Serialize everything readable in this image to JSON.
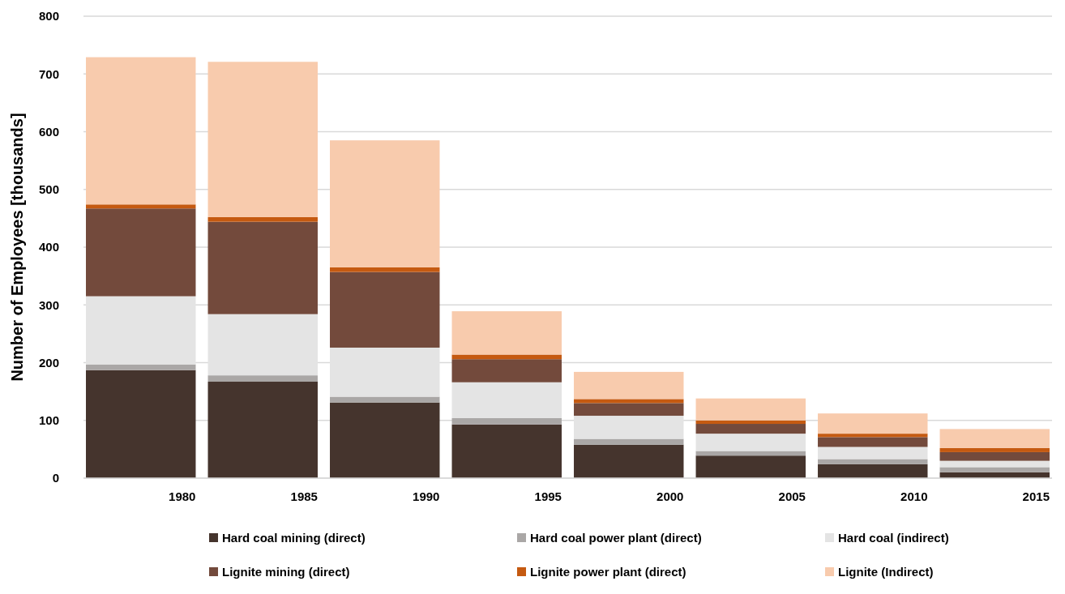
{
  "chart_data": {
    "type": "bar",
    "stacked": true,
    "ylabel": "Number of Employees [thousands]",
    "categories": [
      "1980",
      "1985",
      "1990",
      "1995",
      "2000",
      "2005",
      "2010",
      "2015"
    ],
    "series": [
      {
        "name": "Hard coal mining (direct)",
        "color": "#45342d",
        "values": [
          187,
          167,
          131,
          93,
          58,
          39,
          24,
          10
        ]
      },
      {
        "name": "Hard coal power plant (direct)",
        "color": "#aaa7a6",
        "values": [
          10,
          11,
          10,
          11,
          10,
          8,
          9,
          9
        ]
      },
      {
        "name": "Hard coal (indirect)",
        "color": "#e4e4e4",
        "values": [
          118,
          106,
          85,
          62,
          40,
          30,
          21,
          11
        ]
      },
      {
        "name": "Lignite mining (direct)",
        "color": "#734a3c",
        "values": [
          152,
          160,
          131,
          40,
          22,
          17,
          17,
          15
        ]
      },
      {
        "name": "Lignite power plant (direct)",
        "color": "#c55a11",
        "values": [
          7,
          8,
          8,
          8,
          7,
          6,
          6,
          7
        ]
      },
      {
        "name": "Lignite (Indirect)",
        "color": "#f8cbad",
        "values": [
          255,
          269,
          220,
          75,
          47,
          38,
          35,
          33
        ]
      }
    ],
    "ylim": [
      0,
      800
    ],
    "yticks": [
      0,
      100,
      200,
      300,
      400,
      500,
      600,
      700,
      800
    ],
    "grid": "y",
    "legend": "bottom"
  }
}
